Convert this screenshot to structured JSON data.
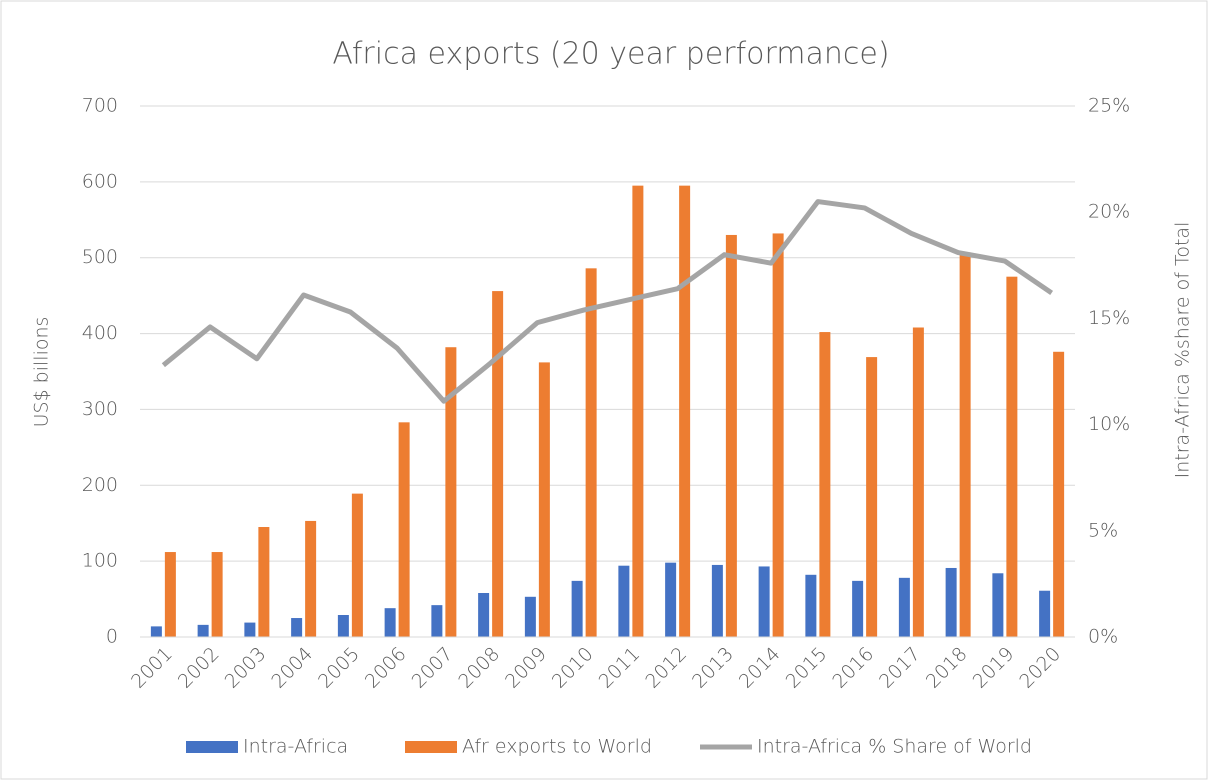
{
  "chart_data": {
    "type": "bar",
    "title": "Africa exports (20 year performance)",
    "y_label": "US$ billions",
    "y2_label": "Intra-Africa %share of Total",
    "categories": [
      "2001",
      "2002",
      "2003",
      "2004",
      "2005",
      "2006",
      "2007",
      "2008",
      "2009",
      "2010",
      "2011",
      "2012",
      "2013",
      "2014",
      "2015",
      "2016",
      "2017",
      "2018",
      "2019",
      "2020"
    ],
    "series": [
      {
        "name": "Intra-Africa",
        "type": "bar",
        "color": "#4472c4",
        "values": [
          14,
          16,
          19,
          25,
          29,
          38,
          42,
          58,
          53,
          74,
          94,
          98,
          95,
          93,
          82,
          74,
          78,
          91,
          84,
          61
        ]
      },
      {
        "name": "Afr exports to World",
        "type": "bar",
        "color": "#ed7d31",
        "values": [
          112,
          112,
          145,
          153,
          189,
          283,
          382,
          456,
          362,
          486,
          595,
          595,
          530,
          532,
          402,
          369,
          408,
          507,
          475,
          376
        ]
      },
      {
        "name": "Intra-Africa % Share of World",
        "type": "line",
        "axis": "y2",
        "color": "#a5a5a5",
        "values": [
          12.8,
          14.6,
          13.1,
          16.1,
          15.3,
          13.6,
          11.1,
          12.9,
          14.8,
          15.4,
          15.9,
          16.4,
          18.0,
          17.6,
          20.5,
          20.2,
          19.0,
          18.1,
          17.7,
          16.2
        ]
      }
    ],
    "ylim": [
      0,
      700
    ],
    "yticks": [
      0,
      100,
      200,
      300,
      400,
      500,
      600,
      700
    ],
    "y2lim": [
      0,
      25
    ],
    "y2ticks": [
      {
        "value": 0,
        "label": "0%"
      },
      {
        "value": 5,
        "label": "5%"
      },
      {
        "value": 10,
        "label": "10%"
      },
      {
        "value": 15,
        "label": "15%"
      },
      {
        "value": 20,
        "label": "20%"
      },
      {
        "value": 25,
        "label": "25%"
      }
    ],
    "grid": true,
    "legend": "bottom"
  }
}
